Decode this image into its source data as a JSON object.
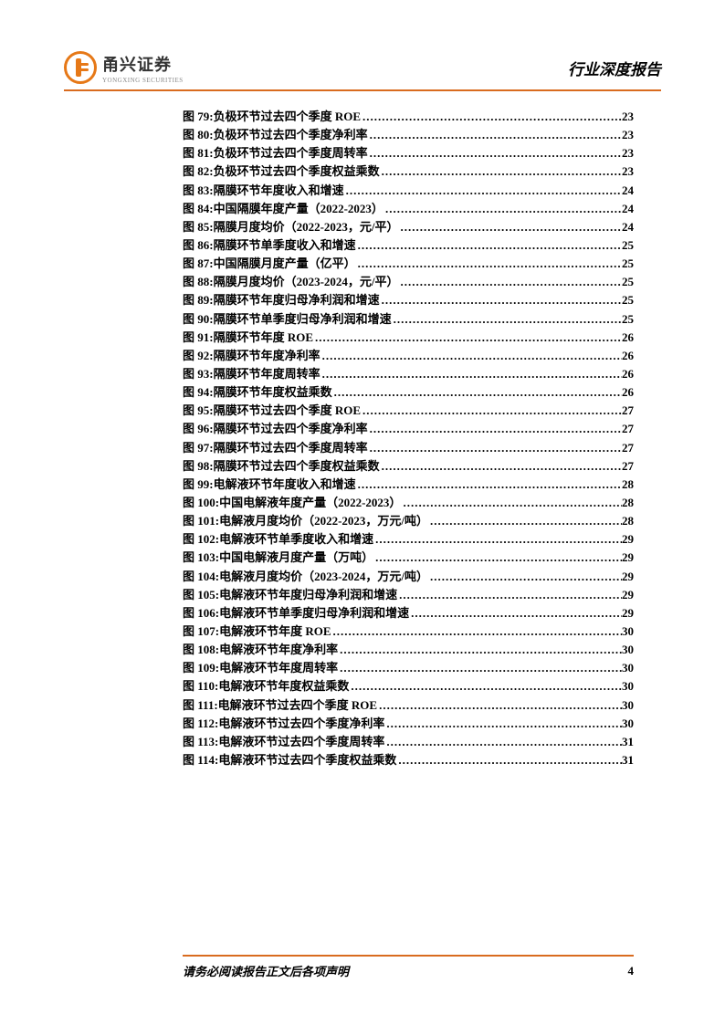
{
  "header": {
    "logo_cn": "甬兴证券",
    "logo_en": "YONGXING SECURITIES",
    "doc_title": "行业深度报告"
  },
  "toc": {
    "label_prefix": "图 ",
    "entries": [
      {
        "num": "79",
        "title": "负极环节过去四个季度 ROE",
        "page": "23"
      },
      {
        "num": "80",
        "title": "负极环节过去四个季度净利率",
        "page": "23"
      },
      {
        "num": "81",
        "title": "负极环节过去四个季度周转率",
        "page": "23"
      },
      {
        "num": "82",
        "title": "负极环节过去四个季度权益乘数",
        "page": "23"
      },
      {
        "num": "83",
        "title": "隔膜环节年度收入和增速",
        "page": "24"
      },
      {
        "num": "84",
        "title": "中国隔膜年度产量（2022-2023）",
        "page": "24"
      },
      {
        "num": "85",
        "title": "隔膜月度均价（2022-2023，元/平）",
        "page": "24"
      },
      {
        "num": "86",
        "title": "隔膜环节单季度收入和增速",
        "page": "25"
      },
      {
        "num": "87",
        "title": "中国隔膜月度产量（亿平）",
        "page": "25"
      },
      {
        "num": "88",
        "title": "隔膜月度均价（2023-2024，元/平）",
        "page": "25"
      },
      {
        "num": "89",
        "title": "隔膜环节年度归母净利润和增速",
        "page": "25"
      },
      {
        "num": "90",
        "title": "隔膜环节单季度归母净利润和增速",
        "page": "25"
      },
      {
        "num": "91",
        "title": "隔膜环节年度 ROE",
        "page": "26"
      },
      {
        "num": "92",
        "title": "隔膜环节年度净利率",
        "page": "26"
      },
      {
        "num": "93",
        "title": "隔膜环节年度周转率",
        "page": "26"
      },
      {
        "num": "94",
        "title": "隔膜环节年度权益乘数",
        "page": "26"
      },
      {
        "num": "95",
        "title": "隔膜环节过去四个季度 ROE",
        "page": "27"
      },
      {
        "num": "96",
        "title": "隔膜环节过去四个季度净利率",
        "page": "27"
      },
      {
        "num": "97",
        "title": "隔膜环节过去四个季度周转率",
        "page": "27"
      },
      {
        "num": "98",
        "title": "隔膜环节过去四个季度权益乘数",
        "page": "27"
      },
      {
        "num": "99",
        "title": "电解液环节年度收入和增速",
        "page": "28"
      },
      {
        "num": "100",
        "title": "中国电解液年度产量（2022-2023）",
        "page": "28"
      },
      {
        "num": "101",
        "title": "电解液月度均价（2022-2023，万元/吨）",
        "page": "28"
      },
      {
        "num": "102",
        "title": "电解液环节单季度收入和增速",
        "page": "29"
      },
      {
        "num": "103",
        "title": "中国电解液月度产量（万吨）",
        "page": "29"
      },
      {
        "num": "104",
        "title": "电解液月度均价（2023-2024，万元/吨）",
        "page": "29"
      },
      {
        "num": "105",
        "title": "电解液环节年度归母净利润和增速",
        "page": "29"
      },
      {
        "num": "106",
        "title": "电解液环节单季度归母净利润和增速",
        "page": "29"
      },
      {
        "num": "107",
        "title": "电解液环节年度 ROE",
        "page": "30"
      },
      {
        "num": "108",
        "title": "电解液环节年度净利率",
        "page": "30"
      },
      {
        "num": "109",
        "title": "电解液环节年度周转率",
        "page": "30"
      },
      {
        "num": "110",
        "title": "电解液环节年度权益乘数",
        "page": "30"
      },
      {
        "num": "111",
        "title": "电解液环节过去四个季度 ROE",
        "page": "30"
      },
      {
        "num": "112",
        "title": "电解液环节过去四个季度净利率",
        "page": "30"
      },
      {
        "num": "113",
        "title": "电解液环节过去四个季度周转率",
        "page": "31"
      },
      {
        "num": "114",
        "title": "电解液环节过去四个季度权益乘数",
        "page": "31"
      }
    ]
  },
  "footer": {
    "disclaimer": "请务必阅读报告正文后各项声明",
    "page_number": "4"
  },
  "colors": {
    "accent": "#d96b1f",
    "logo": "#e67817",
    "text": "#000000"
  }
}
